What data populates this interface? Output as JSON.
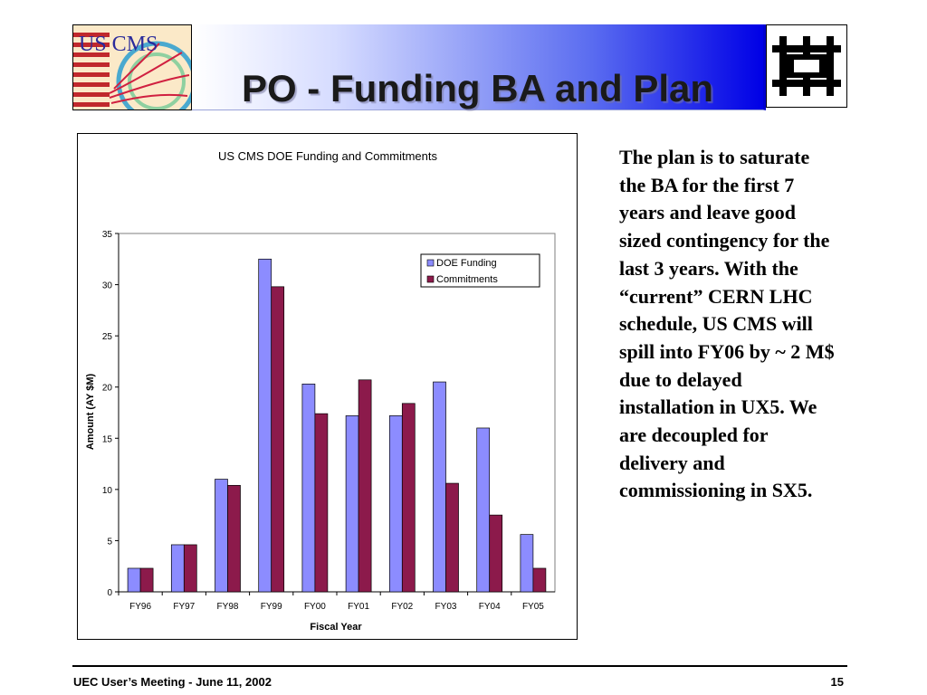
{
  "slide": {
    "title": "PO - Funding BA and Plan",
    "logo_left_text": "US CMS",
    "body_text": "The plan is to saturate the BA for the first 7 years and leave good sized contingency for the last 3 years. With the “current” CERN LHC schedule, US CMS will spill into FY06 by ~ 2 M$ due to delayed installation in UX5. We are decoupled for delivery and commissioning in SX5.",
    "footer_left": "UEC User’s Meeting - June 11, 2002",
    "footer_right": "15"
  },
  "chart_data": {
    "type": "bar",
    "title": "US CMS DOE Funding and Commitments",
    "xlabel": "Fiscal Year",
    "ylabel": "Amount (AY $M)",
    "ylim": [
      0,
      35
    ],
    "yticks": [
      0,
      5,
      10,
      15,
      20,
      25,
      30,
      35
    ],
    "categories": [
      "FY96",
      "FY97",
      "FY98",
      "FY99",
      "FY00",
      "FY01",
      "FY02",
      "FY03",
      "FY04",
      "FY05"
    ],
    "series": [
      {
        "name": "DOE Funding",
        "color": "#8c8cff",
        "values": [
          2.3,
          4.6,
          11.0,
          32.5,
          20.3,
          17.2,
          17.2,
          20.5,
          16.0,
          5.6
        ]
      },
      {
        "name": "Commitments",
        "color": "#8c1a4b",
        "values": [
          2.3,
          4.6,
          10.4,
          29.8,
          17.4,
          20.7,
          18.4,
          10.6,
          7.5,
          2.3
        ]
      }
    ],
    "legend": "top-right",
    "grid": false
  }
}
